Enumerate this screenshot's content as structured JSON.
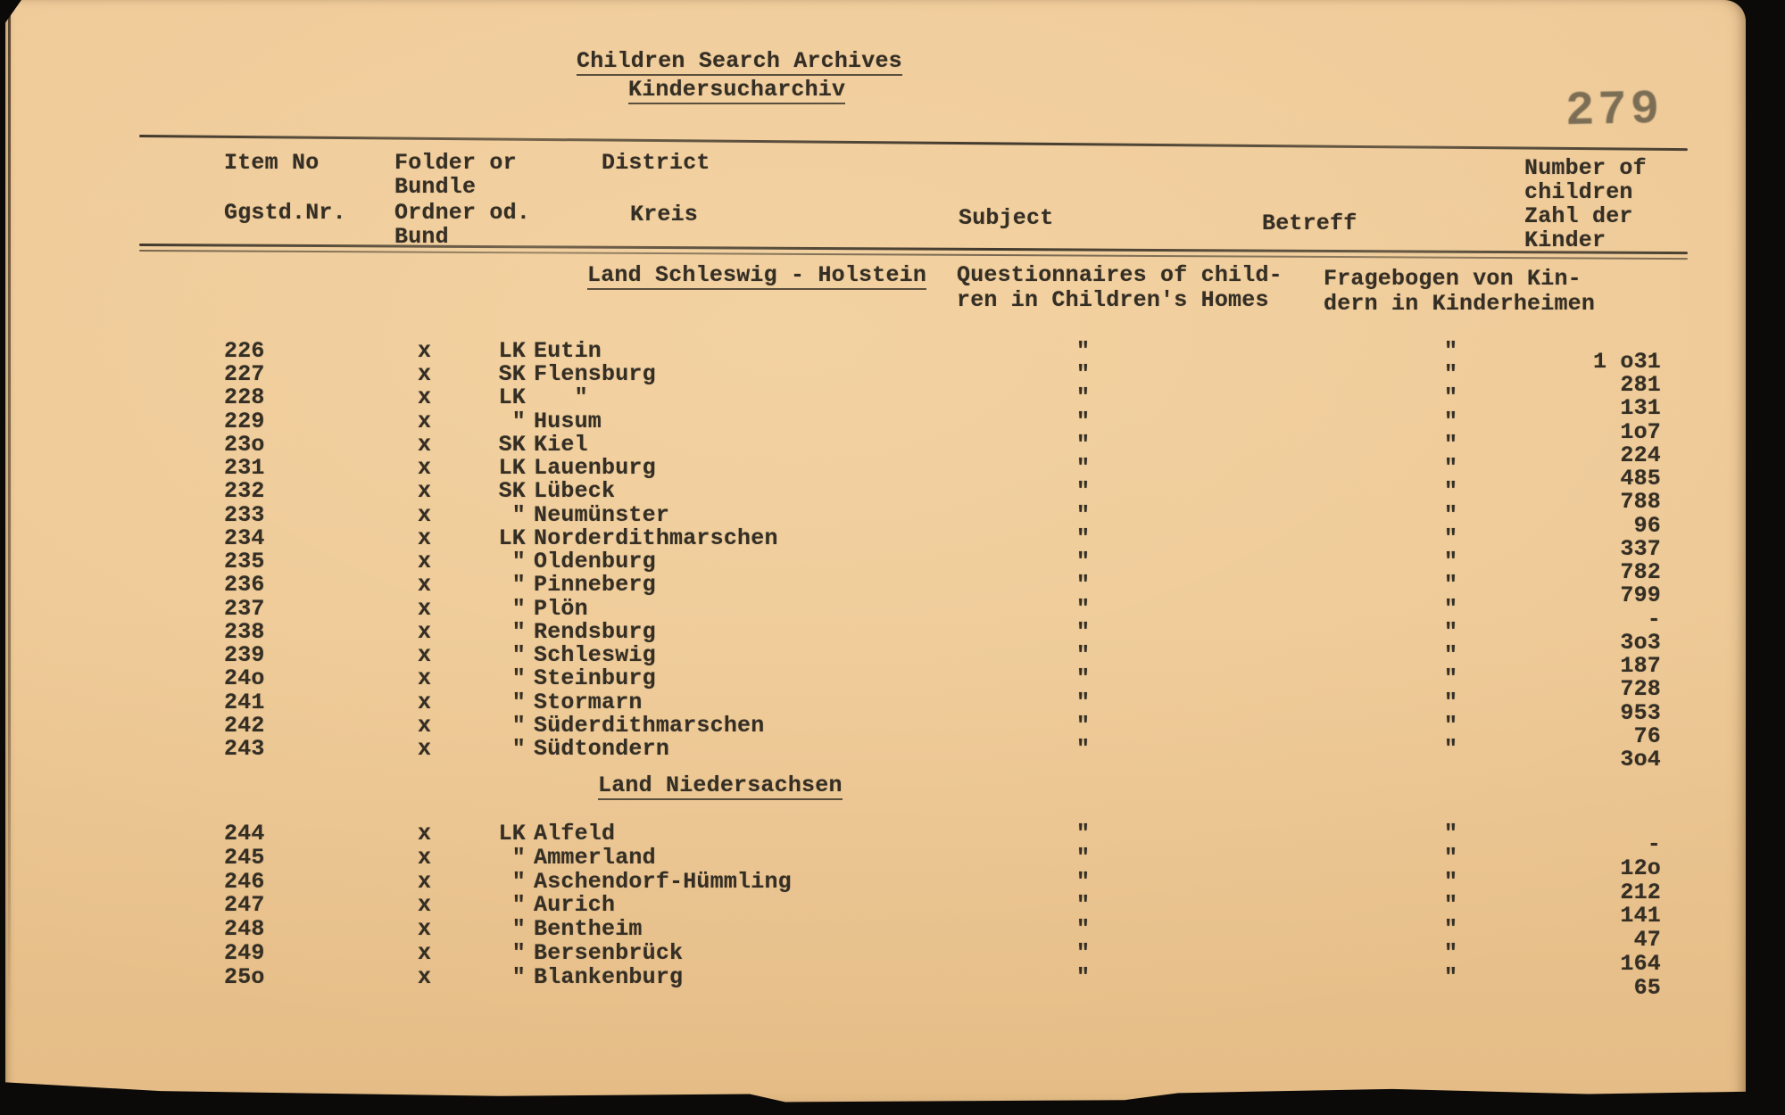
{
  "page": {
    "stamp": "279",
    "title_en": "Children Search Archives",
    "title_de": "Kindersucharchiv"
  },
  "header": {
    "item_no_en": "Item No",
    "item_no_de": "Ggstd.Nr.",
    "folder_en_1": "Folder or",
    "folder_en_2": "Bundle",
    "folder_de_1": "Ordner od.",
    "folder_de_2": "Bund",
    "district_en": "District",
    "district_de": "Kreis",
    "subject_en": "Subject",
    "subject_de": "Betreff",
    "children_1": "Number of",
    "children_2": "children",
    "children_3": "Zahl der",
    "children_4": "Kinder"
  },
  "colors": {
    "paper": "#ecc794",
    "ink": "#342e24",
    "stamp": "#5b5442"
  },
  "sections": [
    {
      "heading": "Land Schleswig - Holstein",
      "subject_lines": [
        "Questionnaires of child-",
        "ren in Children's Homes"
      ],
      "betreff_lines": [
        "Fragebogen von Kin-",
        "dern in Kinderheimen"
      ],
      "rows": [
        {
          "item": "226",
          "folder": "x",
          "district_prefix": "LK",
          "district_name": "Eutin",
          "subject": "\"",
          "betreff": "\"",
          "children": "1 o31"
        },
        {
          "item": "227",
          "folder": "x",
          "district_prefix": "SK",
          "district_name": "Flensburg",
          "subject": "\"",
          "betreff": "\"",
          "children": "281"
        },
        {
          "item": "228",
          "folder": "x",
          "district_prefix": "LK",
          "district_name": "   \"",
          "subject": "\"",
          "betreff": "\"",
          "children": "131"
        },
        {
          "item": "229",
          "folder": "x",
          "district_prefix": "\"",
          "district_name": "Husum",
          "subject": "\"",
          "betreff": "\"",
          "children": "1o7"
        },
        {
          "item": "23o",
          "folder": "x",
          "district_prefix": "SK",
          "district_name": "Kiel",
          "subject": "\"",
          "betreff": "\"",
          "children": "224"
        },
        {
          "item": "231",
          "folder": "x",
          "district_prefix": "LK",
          "district_name": "Lauenburg",
          "subject": "\"",
          "betreff": "\"",
          "children": "485"
        },
        {
          "item": "232",
          "folder": "x",
          "district_prefix": "SK",
          "district_name": "Lübeck",
          "subject": "\"",
          "betreff": "\"",
          "children": "788"
        },
        {
          "item": "233",
          "folder": "x",
          "district_prefix": "\"",
          "district_name": "Neumünster",
          "subject": "\"",
          "betreff": "\"",
          "children": "96"
        },
        {
          "item": "234",
          "folder": "x",
          "district_prefix": "LK",
          "district_name": "Norderdithmarschen",
          "subject": "\"",
          "betreff": "\"",
          "children": "337"
        },
        {
          "item": "235",
          "folder": "x",
          "district_prefix": "\"",
          "district_name": "Oldenburg",
          "subject": "\"",
          "betreff": "\"",
          "children": "782"
        },
        {
          "item": "236",
          "folder": "x",
          "district_prefix": "\"",
          "district_name": "Pinneberg",
          "subject": "\"",
          "betreff": "\"",
          "children": "799"
        },
        {
          "item": "237",
          "folder": "x",
          "district_prefix": "\"",
          "district_name": "Plön",
          "subject": "\"",
          "betreff": "\"",
          "children": "-"
        },
        {
          "item": "238",
          "folder": "x",
          "district_prefix": "\"",
          "district_name": "Rendsburg",
          "subject": "\"",
          "betreff": "\"",
          "children": "3o3"
        },
        {
          "item": "239",
          "folder": "x",
          "district_prefix": "\"",
          "district_name": "Schleswig",
          "subject": "\"",
          "betreff": "\"",
          "children": "187"
        },
        {
          "item": "24o",
          "folder": "x",
          "district_prefix": "\"",
          "district_name": "Steinburg",
          "subject": "\"",
          "betreff": "\"",
          "children": "728"
        },
        {
          "item": "241",
          "folder": "x",
          "district_prefix": "\"",
          "district_name": "Stormarn",
          "subject": "\"",
          "betreff": "\"",
          "children": "953"
        },
        {
          "item": "242",
          "folder": "x",
          "district_prefix": "\"",
          "district_name": "Süderdithmarschen",
          "subject": "\"",
          "betreff": "\"",
          "children": "76"
        },
        {
          "item": "243",
          "folder": "x",
          "district_prefix": "\"",
          "district_name": "Südtondern",
          "subject": "\"",
          "betreff": "\"",
          "children": "3o4"
        }
      ]
    },
    {
      "heading": "Land Niedersachsen",
      "subject_lines": [],
      "betreff_lines": [],
      "rows": [
        {
          "item": "244",
          "folder": "x",
          "district_prefix": "LK",
          "district_name": "Alfeld",
          "subject": "\"",
          "betreff": "\"",
          "children": "-"
        },
        {
          "item": "245",
          "folder": "x",
          "district_prefix": "\"",
          "district_name": "Ammerland",
          "subject": "\"",
          "betreff": "\"",
          "children": "12o"
        },
        {
          "item": "246",
          "folder": "x",
          "district_prefix": "\"",
          "district_name": "Aschendorf-Hümmling",
          "subject": "\"",
          "betreff": "\"",
          "children": "212"
        },
        {
          "item": "247",
          "folder": "x",
          "district_prefix": "\"",
          "district_name": "Aurich",
          "subject": "\"",
          "betreff": "\"",
          "children": "141"
        },
        {
          "item": "248",
          "folder": "x",
          "district_prefix": "\"",
          "district_name": "Bentheim",
          "subject": "\"",
          "betreff": "\"",
          "children": "47"
        },
        {
          "item": "249",
          "folder": "x",
          "district_prefix": "\"",
          "district_name": "Bersenbrück",
          "subject": "\"",
          "betreff": "\"",
          "children": "164"
        },
        {
          "item": "25o",
          "folder": "x",
          "district_prefix": "\"",
          "district_name": "Blankenburg",
          "subject": "\"",
          "betreff": "\"",
          "children": "65"
        }
      ]
    }
  ]
}
